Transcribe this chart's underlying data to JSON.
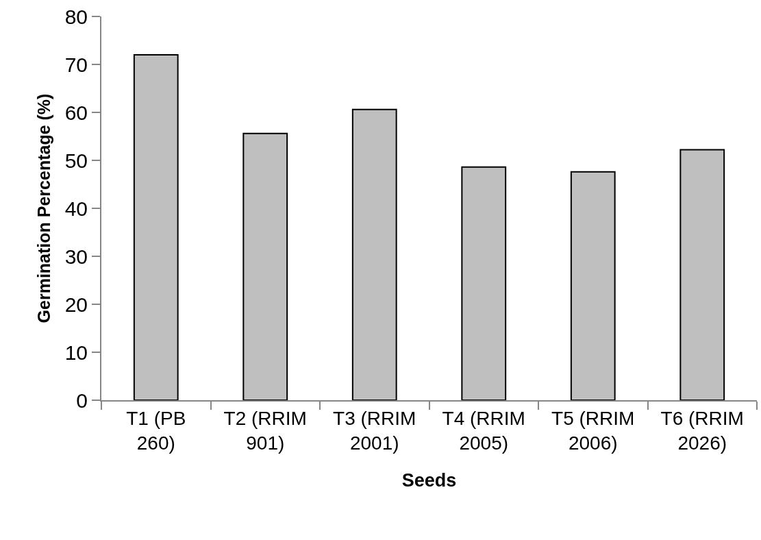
{
  "chart_data": {
    "type": "bar",
    "xlabel": "Seeds",
    "ylabel": "Germination Percentage (%)",
    "categories": [
      "T1 (PB 260)",
      "T2 (RRIM 901)",
      "T3 (RRIM 2001)",
      "T4 (RRIM 2005)",
      "T5 (RRIM 2006)",
      "T6 (RRIM 2026)"
    ],
    "values": [
      72.0,
      55.6,
      60.6,
      48.6,
      47.6,
      52.2
    ],
    "color": "#bfbfbf",
    "ylim": [
      0,
      80
    ],
    "yticks": [
      0,
      10,
      20,
      30,
      40,
      50,
      60,
      70,
      80
    ],
    "grid": false
  }
}
